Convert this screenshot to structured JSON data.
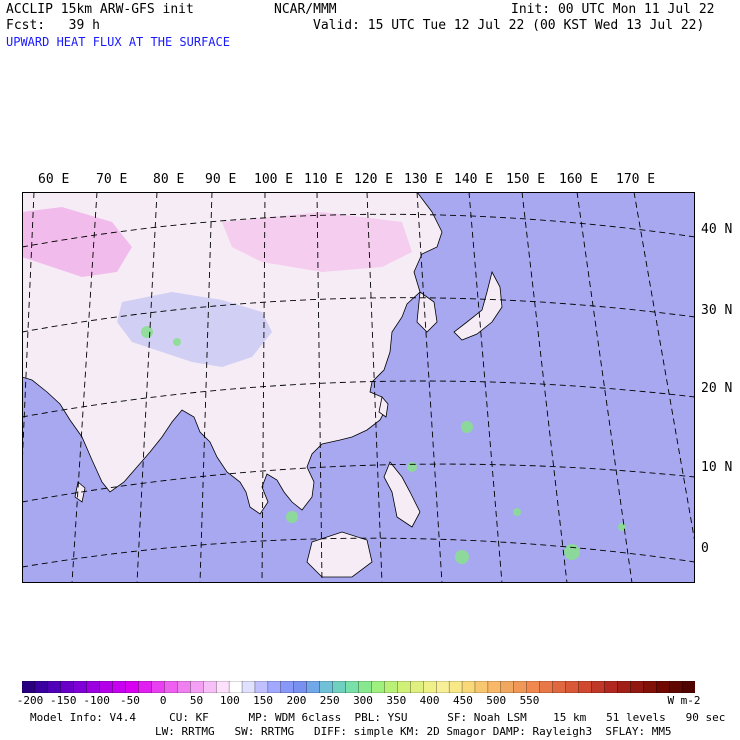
{
  "header": {
    "model_line": "ACCLIP 15km ARW-GFS init",
    "org": "NCAR/MMM",
    "init": "Init: 00 UTC Mon 11 Jul 22",
    "fcst": "Fcst:   39 h",
    "valid": "Valid: 15 UTC Tue 12 Jul 22 (00 KST Wed 13 Jul 22)",
    "field": "UPWARD HEAT FLUX AT THE SURFACE"
  },
  "map": {
    "lon_labels": [
      "60 E",
      "70 E",
      "80 E",
      "90 E",
      "100 E",
      "110 E",
      "120 E",
      "130 E",
      "140 E",
      "150 E",
      "160 E",
      "170 E"
    ],
    "lat_labels": [
      "40 N",
      "30 N",
      "20 N",
      "10 N",
      "0"
    ],
    "colors": {
      "ocean": "#a8a8f0",
      "land_low": "#f4e6f4",
      "land_high": "#f0a8e8",
      "hot": "#9be09b",
      "grid": "#000000"
    }
  },
  "colorbar": {
    "ticks": [
      "-200",
      "-150",
      "-100",
      "-50",
      "0",
      "50",
      "100",
      "150",
      "200",
      "250",
      "300",
      "350",
      "400",
      "450",
      "500",
      "550"
    ],
    "unit": "W m-2",
    "colors": [
      "#2a0080",
      "#3a00a0",
      "#5000b8",
      "#6a00c8",
      "#8000d8",
      "#9a00e0",
      "#b400e8",
      "#c800f0",
      "#d800f0",
      "#e020f0",
      "#e840f0",
      "#ee60f0",
      "#f080f0",
      "#f4a0f4",
      "#f8c0f8",
      "#fce0fc",
      "#ffffff",
      "#e0e0ff",
      "#c0c0ff",
      "#a0a8ff",
      "#8898f8",
      "#7890f0",
      "#70a8e8",
      "#70c0d8",
      "#70d0c0",
      "#78e0a8",
      "#88e890",
      "#a0f080",
      "#b8f078",
      "#d0f078",
      "#e0f080",
      "#f0f088",
      "#f8f098",
      "#f8e888",
      "#f8d878",
      "#f8c870",
      "#f8b868",
      "#f0a860",
      "#f09858",
      "#f08850",
      "#e87848",
      "#e06840",
      "#d85838",
      "#d04830",
      "#c03828",
      "#b02820",
      "#a02018",
      "#901810",
      "#801008",
      "#700800",
      "#600800",
      "#500400"
    ]
  },
  "footer": {
    "line1": "Model Info: V4.4     CU: KF      MP: WDM 6class  PBL: YSU      SF: Noah LSM    15 km   51 levels   90 sec",
    "line2": "LW: RRTMG   SW: RRTMG   DIFF: simple KM: 2D Smagor DAMP: Rayleigh3  SFLAY: MM5"
  }
}
